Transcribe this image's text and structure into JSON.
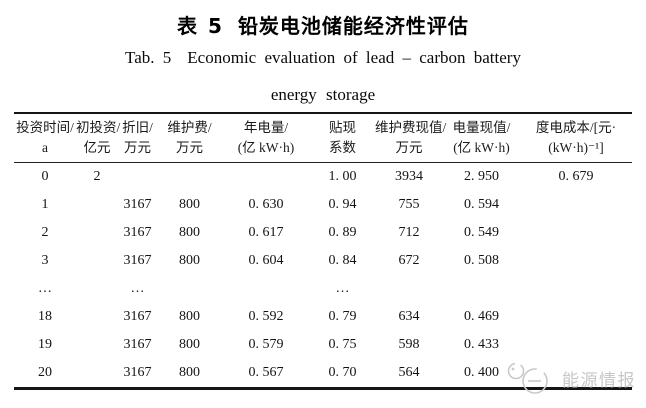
{
  "page": {
    "background": "#ffffff",
    "text_color": "#141414",
    "rule_color": "#151515"
  },
  "title": {
    "zh_label": "表 5",
    "zh_text": "铅炭电池储能经济性评估",
    "en_label": "Tab. 5",
    "en_line1": "Economic evaluation of lead – carbon battery",
    "en_line2": "energy storage"
  },
  "table": {
    "columns": [
      {
        "id": "invest-time",
        "line1": "投资时间/",
        "line2": "a"
      },
      {
        "id": "initial-invest",
        "line1": "初投资/",
        "line2": "亿元"
      },
      {
        "id": "depreciation",
        "line1": "折旧/",
        "line2": "万元"
      },
      {
        "id": "maintenance",
        "line1": "维护费/",
        "line2": "万元"
      },
      {
        "id": "annual-energy",
        "line1": "年电量/",
        "line2": "(亿 kW·h)"
      },
      {
        "id": "discount-factor",
        "line1": "贴现",
        "line2": "系数"
      },
      {
        "id": "maintenance-pv",
        "line1": "维护费现值/",
        "line2": "万元"
      },
      {
        "id": "energy-pv",
        "line1": "电量现值/",
        "line2": "(亿 kW·h)"
      },
      {
        "id": "cost-per-kwh",
        "line1": "度电成本/[元·",
        "line2": "(kW·h)⁻¹]"
      }
    ],
    "rows": [
      [
        "0",
        "2",
        "",
        "",
        "",
        "1. 00",
        "3934",
        "2. 950",
        "0. 679"
      ],
      [
        "1",
        "",
        "3167",
        "800",
        "0. 630",
        "0. 94",
        "755",
        "0. 594",
        ""
      ],
      [
        "2",
        "",
        "3167",
        "800",
        "0. 617",
        "0. 89",
        "712",
        "0. 549",
        ""
      ],
      [
        "3",
        "",
        "3167",
        "800",
        "0. 604",
        "0. 84",
        "672",
        "0. 508",
        ""
      ],
      [
        "…",
        "",
        "…",
        "",
        "",
        "…",
        "",
        "",
        ""
      ],
      [
        "18",
        "",
        "3167",
        "800",
        "0. 592",
        "0. 79",
        "634",
        "0. 469",
        ""
      ],
      [
        "19",
        "",
        "3167",
        "800",
        "0. 579",
        "0. 75",
        "598",
        "0. 433",
        ""
      ],
      [
        "20",
        "",
        "3167",
        "800",
        "0. 567",
        "0. 70",
        "564",
        "0. 400",
        ""
      ]
    ]
  },
  "watermark": {
    "logo": "energy-intel-logo",
    "text": "能源情报",
    "color": "#c7c7c7"
  }
}
